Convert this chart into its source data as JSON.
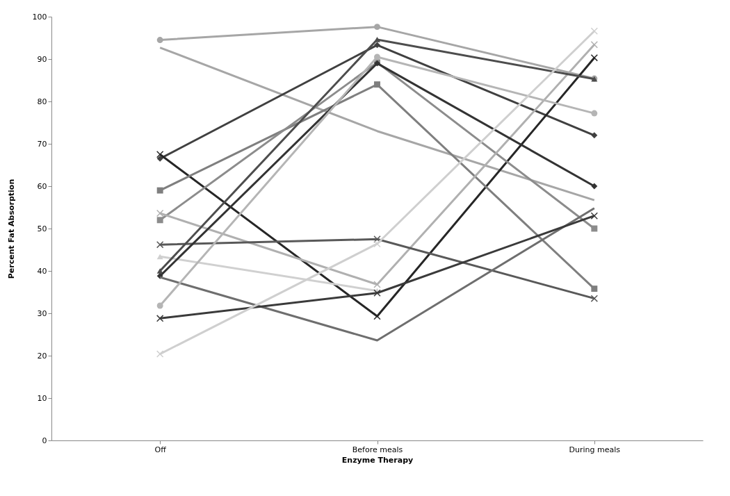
{
  "chart_data": {
    "type": "line",
    "xlabel": "Enzyme Therapy",
    "ylabel": "Percent Fat Absorption",
    "categories": [
      "Off",
      "Before meals",
      "During meals"
    ],
    "ylim": [
      0,
      100
    ],
    "yticks": [
      0,
      10,
      20,
      30,
      40,
      50,
      60,
      70,
      80,
      90,
      100
    ],
    "grid": false,
    "series": [
      {
        "color": "#a6a6a6",
        "marker": "circle",
        "values": [
          94.5,
          97.6,
          85.4
        ]
      },
      {
        "color": "#a6a6a6",
        "marker": "none",
        "values": [
          92.7,
          73,
          56.7
        ]
      },
      {
        "color": "#404040",
        "marker": "diamond",
        "values": [
          66.5,
          93.3,
          72
        ]
      },
      {
        "color": "#262626",
        "marker": "cross",
        "values": [
          67.5,
          29.3,
          90.3
        ]
      },
      {
        "color": "#7f7f7f",
        "marker": "square",
        "values": [
          59,
          84,
          35.8
        ]
      },
      {
        "color": "#8c8c8c",
        "marker": "square",
        "values": [
          52,
          89.2,
          50
        ]
      },
      {
        "color": "#b0b0b0",
        "marker": "cross",
        "values": [
          53.6,
          36.8,
          93.4
        ]
      },
      {
        "color": "#595959",
        "marker": "cross",
        "values": [
          46.2,
          47.5,
          33.5
        ]
      },
      {
        "color": "#d0d0d0",
        "marker": "triangle",
        "values": [
          43.4,
          35.3,
          null
        ]
      },
      {
        "color": "#4d4d4d",
        "marker": "triangle",
        "values": [
          40,
          94.6,
          85.3
        ]
      },
      {
        "color": "#333333",
        "marker": "diamond",
        "values": [
          38.8,
          89,
          60
        ]
      },
      {
        "color": "#6e6e6e",
        "marker": "none",
        "values": [
          38.5,
          23.6,
          54.8
        ]
      },
      {
        "color": "#b5b5b5",
        "marker": "circle",
        "values": [
          31.8,
          90.5,
          77.2
        ]
      },
      {
        "color": "#3a3a3a",
        "marker": "cross",
        "values": [
          28.8,
          34.8,
          53
        ]
      },
      {
        "color": "#cfcfcf",
        "marker": "cross",
        "values": [
          20.4,
          46.4,
          96.6
        ]
      }
    ]
  }
}
